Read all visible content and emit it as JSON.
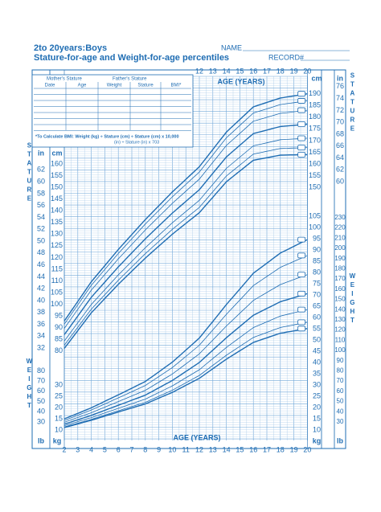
{
  "header": {
    "title": "2to 20years:Boys",
    "subtitle": "Stature-for-age and Weight-for-age percentiles",
    "name_label": "NAME",
    "record_label": "RECORD#"
  },
  "table": {
    "mother": "Mother's Stature",
    "father": "Father's Stature",
    "columns": [
      "Date",
      "Age",
      "Weight",
      "Stature",
      "BMI*"
    ]
  },
  "bmi_note": [
    "*To Calculate BMI: Weight (kg) ÷ Stature (cm) ÷ Stature (cm) x 10,000",
    "(in) ÷ Stature (in) x 703"
  ],
  "top_axis": {
    "ages": [
      12,
      13,
      14,
      15,
      16,
      17,
      18,
      19,
      20
    ],
    "label": "AGE (YEARS)",
    "cm": "cm",
    "in": "in"
  },
  "bottom_axis": {
    "ages": [
      2,
      3,
      4,
      5,
      6,
      7,
      8,
      9,
      10,
      11,
      12,
      13,
      14,
      15,
      16,
      17,
      18,
      19,
      20
    ],
    "label": "AGE (YEARS)",
    "kg": "kg",
    "lb": "lb"
  },
  "left_axis": {
    "cm": [
      160,
      155,
      150,
      145,
      140,
      135,
      130,
      125,
      120,
      115,
      110,
      105,
      100,
      95,
      90,
      85,
      80
    ],
    "in": [
      62,
      60,
      58,
      56,
      54,
      52,
      50,
      48,
      46,
      44,
      42,
      40,
      38,
      36,
      34,
      32
    ],
    "kg": [
      30,
      25,
      20,
      15,
      10
    ],
    "lb": [
      80,
      70,
      60,
      50,
      40,
      30
    ],
    "cm_label": "cm",
    "in_label": "in",
    "kg_label": "kg",
    "lb_label": "lb"
  },
  "right_axis": {
    "cm": [
      190,
      185,
      180,
      175,
      170,
      165,
      160,
      155,
      150
    ],
    "in": [
      76,
      74,
      72,
      70,
      68,
      66,
      64,
      62,
      60
    ],
    "kg": [
      105,
      100,
      95,
      90,
      85,
      80,
      75,
      70,
      65,
      60,
      55,
      50,
      45,
      40,
      35,
      30,
      25,
      20,
      15,
      10
    ],
    "lb": [
      230,
      220,
      210,
      200,
      190,
      180,
      170,
      160,
      150,
      140,
      130,
      120,
      110,
      100,
      90,
      80,
      70,
      60,
      50,
      40,
      30
    ]
  },
  "side_words": {
    "stature": "STATURE",
    "weight": "WEIGHT"
  }
}
